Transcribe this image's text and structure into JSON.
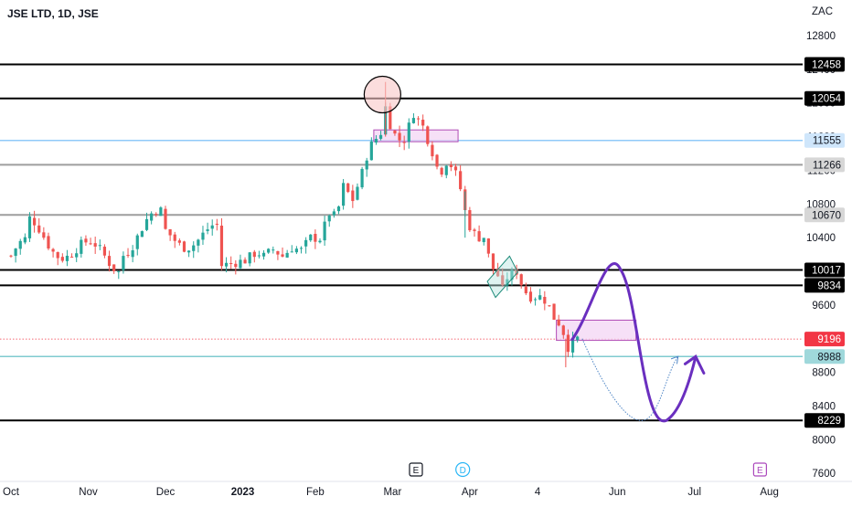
{
  "header": {
    "title": "JSE LTD, 1D, JSE",
    "currency": "ZAC"
  },
  "colors": {
    "up": "#26a69a",
    "down": "#ef5350",
    "black": "#000000",
    "light_blue": "#90caf9",
    "teal": "#80cbd0",
    "grey": "#9e9e9e",
    "zone_fill": "#f3d5f4",
    "zone_stroke": "#b04bb5",
    "forecast_purple": "#6a2fbf",
    "forecast_blue": "#4f86c6",
    "circle_fill": "#f8c6c6",
    "last_price": "#f23645"
  },
  "chart_data": {
    "type": "candlestick",
    "title": "JSE LTD, 1D, JSE",
    "ylabel": "ZAC",
    "ylim": [
      7600,
      12950
    ],
    "y_ticks": [
      12800,
      12400,
      12000,
      11600,
      11200,
      10800,
      10400,
      10000,
      9600,
      9200,
      8800,
      8400,
      8000,
      7600
    ],
    "x_ticks": [
      {
        "label": "Oct",
        "bold": false
      },
      {
        "label": "Nov",
        "bold": false
      },
      {
        "label": "Dec",
        "bold": false
      },
      {
        "label": "2023",
        "bold": true
      },
      {
        "label": "Feb",
        "bold": false
      },
      {
        "label": "Mar",
        "bold": false
      },
      {
        "label": "Apr",
        "bold": false
      },
      {
        "label": "4",
        "bold": false
      },
      {
        "label": "Jun",
        "bold": false
      },
      {
        "label": "Jul",
        "bold": false
      },
      {
        "label": "Aug",
        "bold": false
      }
    ],
    "horizontal_levels": [
      {
        "value": 12458,
        "label": "12458",
        "style": "black"
      },
      {
        "value": 12054,
        "label": "12054",
        "style": "black"
      },
      {
        "value": 11555,
        "label": "11555",
        "style": "light_blue"
      },
      {
        "value": 11266,
        "label": "11266",
        "style": "grey"
      },
      {
        "value": 10670,
        "label": "10670",
        "style": "grey"
      },
      {
        "value": 10017,
        "label": "10017",
        "style": "black"
      },
      {
        "value": 9834,
        "label": "9834",
        "style": "black"
      },
      {
        "value": 9196,
        "label": "9196",
        "style": "last_price"
      },
      {
        "value": 8988,
        "label": "8988",
        "style": "teal"
      },
      {
        "value": 8229,
        "label": "8229",
        "style": "black"
      }
    ],
    "last_price": 9196,
    "anchors": [
      [
        9.0,
        10070
      ],
      [
        10.0,
        10130
      ],
      [
        10.5,
        10230
      ],
      [
        10.8,
        10180
      ],
      [
        11.2,
        10260
      ],
      [
        11.6,
        10180
      ],
      [
        12.0,
        10280
      ],
      [
        12.4,
        10250
      ],
      [
        12.8,
        10400
      ],
      [
        13.2,
        10390
      ],
      [
        13.6,
        10690
      ],
      [
        13.9,
        10640
      ],
      [
        14.2,
        11010
      ],
      [
        14.6,
        10850
      ],
      [
        15.0,
        11170
      ],
      [
        15.3,
        11470
      ],
      [
        15.8,
        11650
      ],
      [
        16.0,
        11950
      ],
      [
        16.15,
        11780
      ],
      [
        16.5,
        11560
      ],
      [
        16.8,
        11570
      ],
      [
        17.2,
        11880
      ],
      [
        17.6,
        11720
      ],
      [
        18.0,
        11420
      ],
      [
        18.3,
        11150
      ],
      [
        18.6,
        11300
      ],
      [
        18.9,
        11240
      ],
      [
        19.2,
        10980
      ],
      [
        19.5,
        10580
      ],
      [
        19.9,
        10400
      ],
      [
        20.2,
        10410
      ],
      [
        20.5,
        10070
      ],
      [
        20.8,
        9950
      ],
      [
        21.0,
        9780
      ],
      [
        21.2,
        9930
      ],
      [
        21.4,
        9970
      ],
      [
        21.6,
        10000
      ],
      [
        21.9,
        9780
      ],
      [
        22.2,
        9700
      ],
      [
        22.6,
        9700
      ],
      [
        22.9,
        9640
      ],
      [
        23.2,
        9450
      ],
      [
        23.5,
        9360
      ],
      [
        23.8,
        9100
      ],
      [
        24.2,
        9200
      ]
    ],
    "zones": [
      {
        "name": "supply-zone-top",
        "x0": 15.5,
        "x1": 19.1,
        "y0": 11540,
        "y1": 11680
      },
      {
        "name": "supply-zone-bottom",
        "x0": 23.3,
        "x1": 26.7,
        "y0": 9180,
        "y1": 9420
      }
    ],
    "markers": [
      {
        "name": "e-marker",
        "label": "E",
        "x": 17.3
      },
      {
        "name": "d-marker",
        "label": "D",
        "x": 19.3
      },
      {
        "name": "e-marker-future",
        "label": "E",
        "x": 32.0
      }
    ]
  }
}
